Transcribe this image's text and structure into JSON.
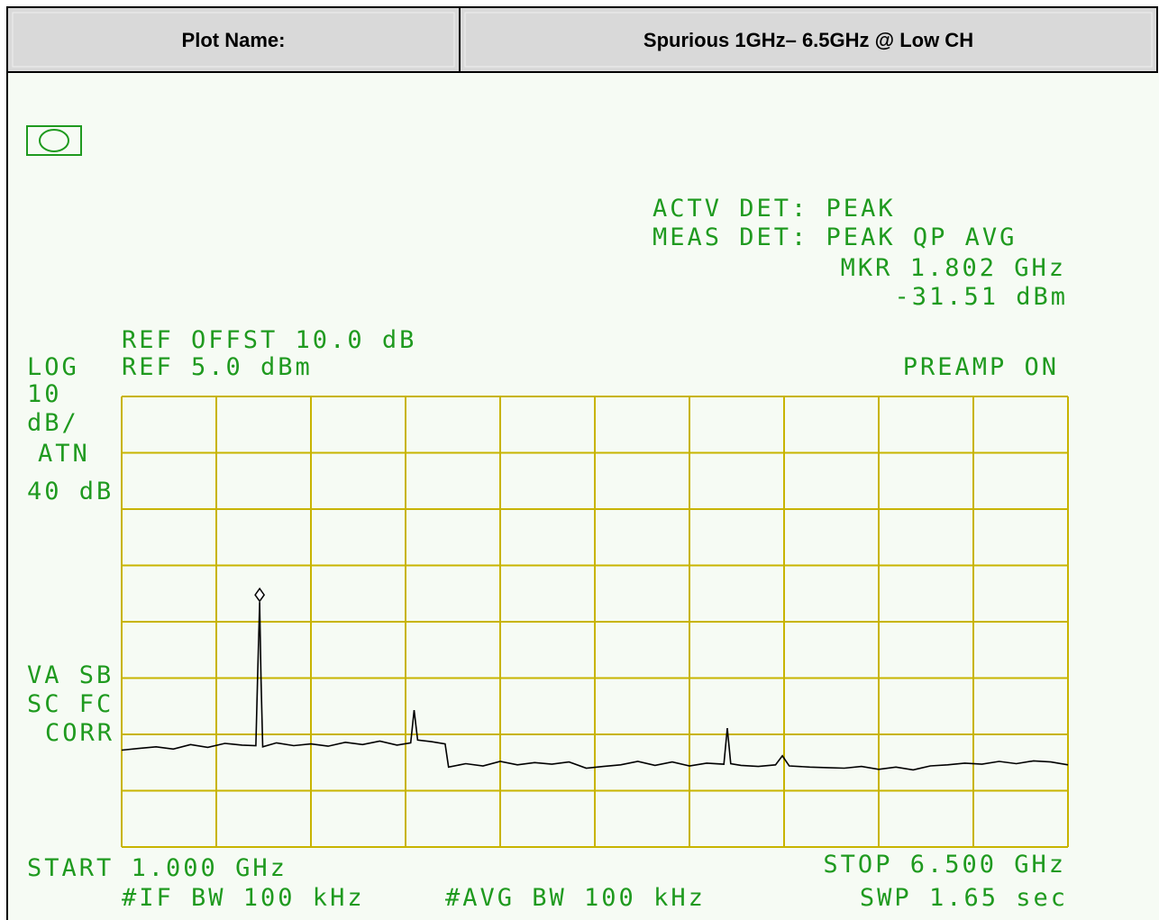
{
  "header": {
    "label": "Plot Name:",
    "value": "Spurious 1GHz– 6.5GHz @ Low CH"
  },
  "chart_data": {
    "type": "line",
    "annotations": [
      "ACTV DET: PEAK",
      "MEAS DET: PEAK QP AVG",
      "MKR 1.802 GHz",
      "-31.51 dBm",
      "REF OFFST 10.0 dB",
      "LOG",
      "REF 5.0 dBm",
      "PREAMP ON",
      "10",
      "dB/",
      "ATN",
      "40 dB",
      "VA SB",
      "SC FC",
      "CORR",
      "START 1.000 GHz",
      "STOP 6.500 GHz",
      "#IF BW 100 kHz",
      "#AVG BW 100 kHz",
      "SWP 1.65 sec"
    ],
    "xlim": [
      1.0,
      6.5
    ],
    "ylim": [
      -75,
      5
    ],
    "xticks": [
      1.0,
      1.55,
      2.1,
      2.65,
      3.2,
      3.75,
      4.3,
      4.85,
      5.4,
      5.95,
      6.5
    ],
    "yticks": [
      -75,
      -65,
      -55,
      -45,
      -35,
      -25,
      -15,
      -5,
      5
    ],
    "grid": true,
    "grid_color": "#c8b400",
    "text_color": "#1f9a1f",
    "marker": {
      "x": 1.802,
      "y": -31.51
    },
    "series": [
      {
        "color": "#000000",
        "x": [
          1.0,
          1.1,
          1.2,
          1.3,
          1.4,
          1.5,
          1.6,
          1.7,
          1.78,
          1.79,
          1.802,
          1.81,
          1.82,
          1.9,
          2.0,
          2.1,
          2.2,
          2.3,
          2.4,
          2.5,
          2.6,
          2.68,
          2.7,
          2.72,
          2.8,
          2.88,
          2.9,
          3.0,
          3.1,
          3.2,
          3.3,
          3.4,
          3.5,
          3.6,
          3.7,
          3.8,
          3.9,
          4.0,
          4.1,
          4.2,
          4.3,
          4.4,
          4.5,
          4.52,
          4.54,
          4.6,
          4.7,
          4.8,
          4.84,
          4.88,
          5.0,
          5.1,
          5.2,
          5.3,
          5.4,
          5.5,
          5.6,
          5.7,
          5.8,
          5.9,
          6.0,
          6.1,
          6.2,
          6.3,
          6.4,
          6.5
        ],
        "values": [
          -57.8,
          -57.5,
          -57.2,
          -57.6,
          -56.8,
          -57.3,
          -56.6,
          -56.9,
          -57.0,
          -45,
          -31.51,
          -45,
          -57.2,
          -56.5,
          -57.0,
          -56.7,
          -57.1,
          -56.4,
          -56.8,
          -56.2,
          -56.9,
          -56.5,
          -50.7,
          -56.0,
          -56.3,
          -56.7,
          -60.8,
          -60.2,
          -60.6,
          -59.8,
          -60.4,
          -60.0,
          -60.3,
          -59.9,
          -61.0,
          -60.7,
          -60.4,
          -59.8,
          -60.5,
          -59.9,
          -60.6,
          -60.1,
          -60.3,
          -53.9,
          -60.2,
          -60.5,
          -60.7,
          -60.4,
          -58.8,
          -60.6,
          -60.8,
          -60.9,
          -61.0,
          -60.7,
          -61.2,
          -60.8,
          -61.3,
          -60.6,
          -60.4,
          -60.1,
          -60.3,
          -59.8,
          -60.2,
          -59.7,
          -59.9,
          -60.4
        ]
      }
    ]
  }
}
